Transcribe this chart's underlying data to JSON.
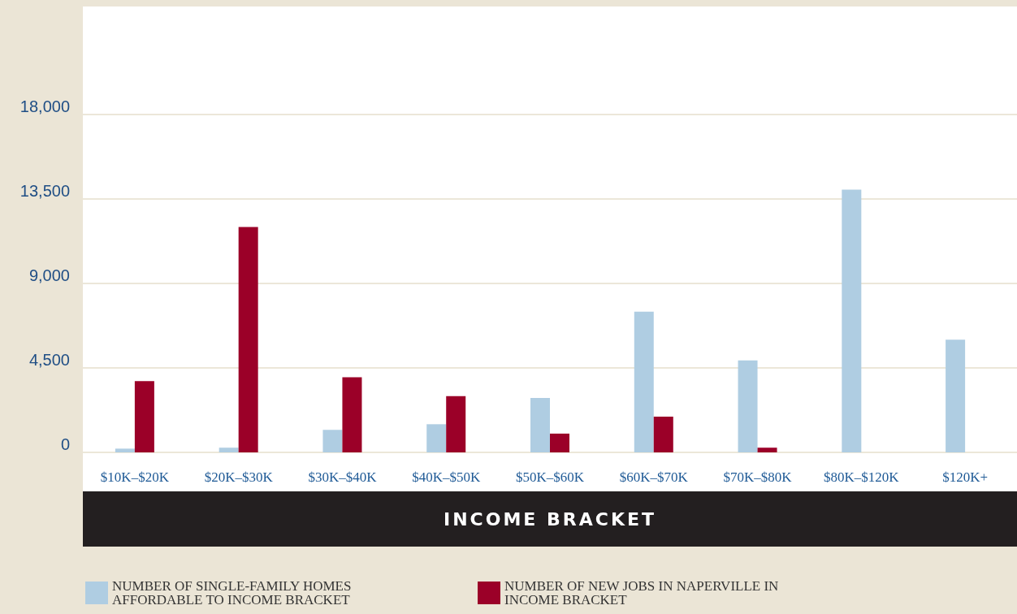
{
  "chart_data": {
    "type": "bar",
    "xlabel": "INCOME BRACKET",
    "categories": [
      "$10K–$20K",
      "$20K–$30K",
      "$30K–$40K",
      "$40K–$50K",
      "$50K–$60K",
      "$60K–$70K",
      "$70K–$80K",
      "$80K–$120K",
      "$120K+"
    ],
    "series": [
      {
        "name": "NUMBER OF SINGLE-FAMILY HOMES AFFORDABLE TO INCOME BRACKET",
        "color": "#afcde2",
        "values": [
          200,
          250,
          1200,
          1500,
          2900,
          7500,
          4900,
          14000,
          6000
        ]
      },
      {
        "name": "NUMBER OF NEW JOBS IN NAPERVILLE IN INCOME BRACKET",
        "color": "#9b0028",
        "values": [
          3800,
          12000,
          4000,
          3000,
          1000,
          1900,
          250,
          0,
          0
        ]
      }
    ],
    "ylim": [
      0,
      23750
    ],
    "yticks": [
      0,
      {
        "value": 4500,
        "label": "4,500"
      },
      {
        "value": 9000,
        "label": "9,000"
      },
      {
        "value": 13500,
        "label": "13,500"
      },
      {
        "value": 18000,
        "label": "18,000"
      }
    ],
    "grid": "y",
    "legend": "bottom"
  }
}
